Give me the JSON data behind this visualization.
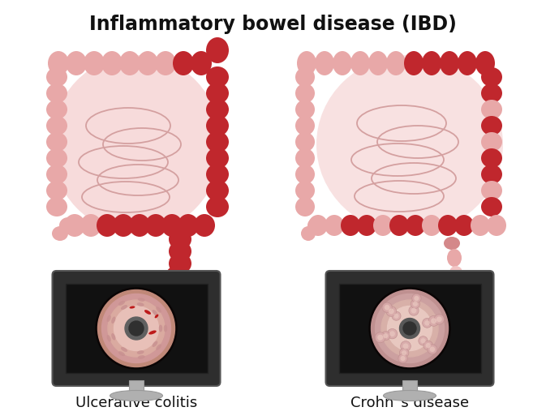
{
  "title": "Inflammatory bowel disease (IBD)",
  "title_fontsize": 17,
  "label_left": "Ulcerative colitis",
  "label_right": "Crohn`s disease",
  "label_fontsize": 13,
  "bg_color": "#ffffff",
  "colon_normal_color": "#e8a8a8",
  "colon_inflamed": "#c0272d",
  "colon_light": "#f2c4c4",
  "colon_mid": "#d4888a",
  "monitor_bg": "#111111",
  "monitor_frame": "#2e2e2e",
  "monitor_stand_color": "#b0b0b0"
}
